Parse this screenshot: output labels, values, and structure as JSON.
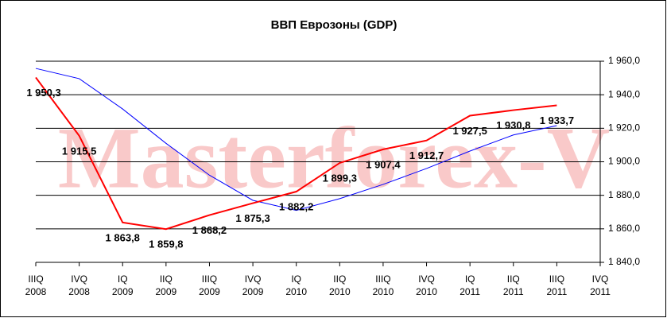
{
  "chart_data": {
    "type": "line",
    "title": "ВВП Еврозоны (GDP)",
    "watermark": "Masterforex-V",
    "categories": [
      "IIIQ\n2008",
      "IVQ\n2008",
      "IQ\n2009",
      "IIQ\n2009",
      "IIIQ\n2009",
      "IVQ\n2009",
      "IQ\n2010",
      "IIQ\n2010",
      "IIIQ\n2010",
      "IVQ\n2010",
      "IQ\n2011",
      "IIQ\n2011",
      "IIIQ\n2011",
      "IVQ\n2011"
    ],
    "series": [
      {
        "color": "#ff0000",
        "values": [
          1950.3,
          1915.5,
          1863.8,
          1859.8,
          1868.2,
          1875.3,
          1882.2,
          1899.3,
          1907.4,
          1912.7,
          1927.5,
          1930.8,
          1933.7,
          null
        ],
        "value_labels": [
          "1 950,3",
          "1 915,5",
          "1 863,8",
          "1 859,8",
          "1 868,2",
          "1 875,3",
          "1 882,2",
          "1 899,3",
          "1 907,4",
          "1 912,7",
          "1 927,5",
          "1 930,8",
          "1 933,7",
          null
        ]
      },
      {
        "color": "#0000ff",
        "values": [
          1955.7,
          1949.6,
          1931.5,
          1911,
          1892,
          1877,
          1871,
          1878,
          1886.5,
          1896,
          1906.4,
          1916,
          1921.6,
          null
        ]
      }
    ],
    "ylim": [
      1840,
      1960
    ],
    "yticks": [
      {
        "value": 1840,
        "label": "1 840,0"
      },
      {
        "value": 1860,
        "label": "1 860,0"
      },
      {
        "value": 1880,
        "label": "1 880,0"
      },
      {
        "value": 1900,
        "label": "1 900,0"
      },
      {
        "value": 1920,
        "label": "1 920,0"
      },
      {
        "value": 1940,
        "label": "1 940,0"
      },
      {
        "value": 1960,
        "label": "1 960,0"
      }
    ],
    "grid": true
  }
}
